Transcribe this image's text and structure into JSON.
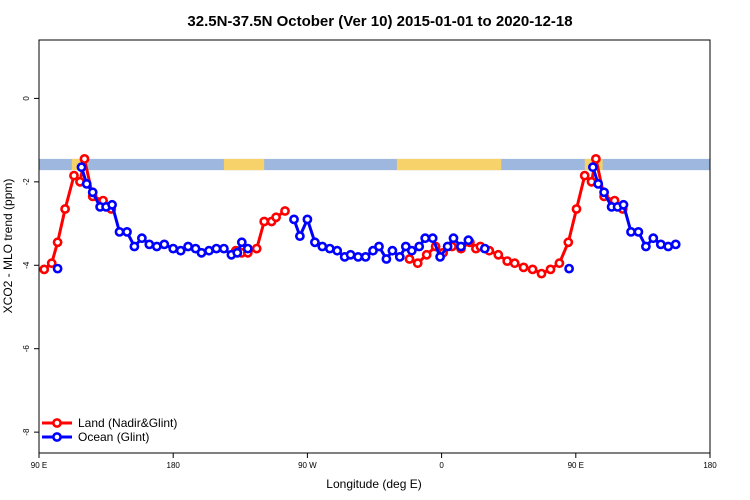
{
  "chart_data": {
    "type": "line",
    "title": "32.5N-37.5N October (Ver 10)   2015-01-01 to 2020-12-18",
    "xlabel": "Longitude (deg E)",
    "ylabel": "XCO2 - MLO trend (ppm)",
    "xlim": [
      90,
      540
    ],
    "ylim": [
      -8.5,
      1.4
    ],
    "x_ticks": [
      {
        "value": 90,
        "label": "90 E"
      },
      {
        "value": 180,
        "label": "180"
      },
      {
        "value": 270,
        "label": "90 W"
      },
      {
        "value": 360,
        "label": "0"
      },
      {
        "value": 450,
        "label": "90 E"
      },
      {
        "value": 540,
        "label": "180"
      }
    ],
    "y_ticks": [
      {
        "value": 0,
        "label": "0"
      },
      {
        "value": -2,
        "label": "-2"
      },
      {
        "value": -4,
        "label": "-4"
      },
      {
        "value": -6,
        "label": "-6"
      },
      {
        "value": -8,
        "label": "-8"
      }
    ],
    "grid": false,
    "legend_position": "bottom-left",
    "series": [
      {
        "name": "Land (Nadir&Glint)",
        "color": "#ff0000",
        "points": [
          [
            93.5,
            -4.1
          ],
          [
            98.5,
            -3.95
          ],
          [
            102.5,
            -3.45
          ],
          [
            107.5,
            -2.65
          ],
          [
            113.5,
            -1.85
          ],
          [
            117.5,
            -2.0
          ],
          [
            120.5,
            -1.45
          ],
          [
            126,
            -2.35
          ],
          [
            133,
            -2.45
          ],
          [
            138.5,
            -2.65
          ],
          [
            144,
            null
          ],
          [
            222,
            -3.65
          ],
          [
            226,
            -3.7
          ],
          [
            230,
            -3.7
          ],
          [
            236,
            -3.6
          ],
          [
            241,
            -2.95
          ],
          [
            246,
            -2.95
          ],
          [
            249,
            -2.85
          ],
          [
            255,
            -2.7
          ],
          [
            261,
            null
          ],
          [
            338.5,
            -3.85
          ],
          [
            344,
            -3.95
          ],
          [
            350,
            -3.75
          ],
          [
            356,
            -3.55
          ],
          [
            361,
            -3.7
          ],
          [
            367,
            -3.55
          ],
          [
            373,
            -3.6
          ],
          [
            379,
            -3.45
          ],
          [
            383,
            -3.6
          ],
          [
            386,
            -3.55
          ],
          [
            392,
            -3.65
          ],
          [
            398,
            -3.75
          ],
          [
            404,
            -3.9
          ],
          [
            409,
            -3.95
          ],
          [
            415,
            -4.05
          ],
          [
            421,
            -4.1
          ],
          [
            427,
            -4.2
          ],
          [
            433,
            -4.1
          ],
          [
            439,
            -3.95
          ],
          [
            445,
            -3.45
          ],
          [
            450.5,
            -2.65
          ],
          [
            456,
            -1.85
          ],
          [
            460.5,
            -2.0
          ],
          [
            463.5,
            -1.45
          ],
          [
            469,
            -2.35
          ],
          [
            476,
            -2.45
          ],
          [
            481.5,
            -2.65
          ],
          [
            487,
            null
          ]
        ]
      },
      {
        "name": "Ocean (Glint)",
        "color": "#0000ff",
        "points": [
          [
            102.5,
            -4.08
          ],
          [
            107,
            null
          ],
          [
            118.5,
            -1.65
          ],
          [
            122,
            -2.05
          ],
          [
            126,
            -2.25
          ],
          [
            131,
            -2.6
          ],
          [
            135,
            -2.6
          ],
          [
            139,
            -2.55
          ],
          [
            144,
            -3.2
          ],
          [
            149,
            -3.2
          ],
          [
            154,
            -3.55
          ],
          [
            159,
            -3.35
          ],
          [
            164,
            -3.5
          ],
          [
            169,
            -3.55
          ],
          [
            174,
            -3.5
          ],
          [
            180,
            -3.6
          ],
          [
            185,
            -3.65
          ],
          [
            190,
            -3.55
          ],
          [
            195,
            -3.6
          ],
          [
            199,
            -3.7
          ],
          [
            204,
            -3.65
          ],
          [
            209,
            -3.6
          ],
          [
            214,
            -3.6
          ],
          [
            219,
            -3.75
          ],
          [
            223,
            -3.7
          ],
          [
            226,
            -3.45
          ],
          [
            230,
            -3.6
          ],
          [
            234,
            null
          ],
          [
            261,
            -2.9
          ],
          [
            265,
            -3.3
          ],
          [
            270,
            -2.9
          ],
          [
            275,
            -3.45
          ],
          [
            280,
            -3.55
          ],
          [
            285,
            -3.6
          ],
          [
            290,
            -3.65
          ],
          [
            295,
            -3.8
          ],
          [
            299,
            -3.75
          ],
          [
            304,
            -3.8
          ],
          [
            309,
            -3.8
          ],
          [
            314,
            -3.65
          ],
          [
            318,
            -3.55
          ],
          [
            323,
            -3.85
          ],
          [
            327,
            -3.65
          ],
          [
            332,
            -3.8
          ],
          [
            336,
            -3.55
          ],
          [
            340,
            -3.65
          ],
          [
            345,
            -3.55
          ],
          [
            349,
            -3.35
          ],
          [
            354,
            -3.35
          ],
          [
            359,
            -3.8
          ],
          [
            364,
            -3.55
          ],
          [
            368,
            -3.35
          ],
          [
            373,
            -3.55
          ],
          [
            378,
            -3.4
          ],
          [
            382,
            null
          ],
          [
            389,
            -3.6
          ],
          [
            394,
            null
          ],
          [
            445.5,
            -4.08
          ],
          [
            450,
            null
          ],
          [
            461.5,
            -1.65
          ],
          [
            465,
            -2.05
          ],
          [
            469,
            -2.25
          ],
          [
            474,
            -2.6
          ],
          [
            478,
            -2.6
          ],
          [
            482,
            -2.55
          ],
          [
            487,
            -3.2
          ],
          [
            492,
            -3.2
          ],
          [
            497,
            -3.55
          ],
          [
            502,
            -3.35
          ],
          [
            507,
            -3.5
          ],
          [
            512,
            -3.55
          ],
          [
            517,
            -3.5
          ],
          [
            522,
            null
          ]
        ]
      }
    ],
    "surface_band": {
      "y_top": -1.45,
      "y_bottom": -1.72,
      "land_color": "#f7d26a",
      "ocean_color": "#9db7de"
    }
  }
}
